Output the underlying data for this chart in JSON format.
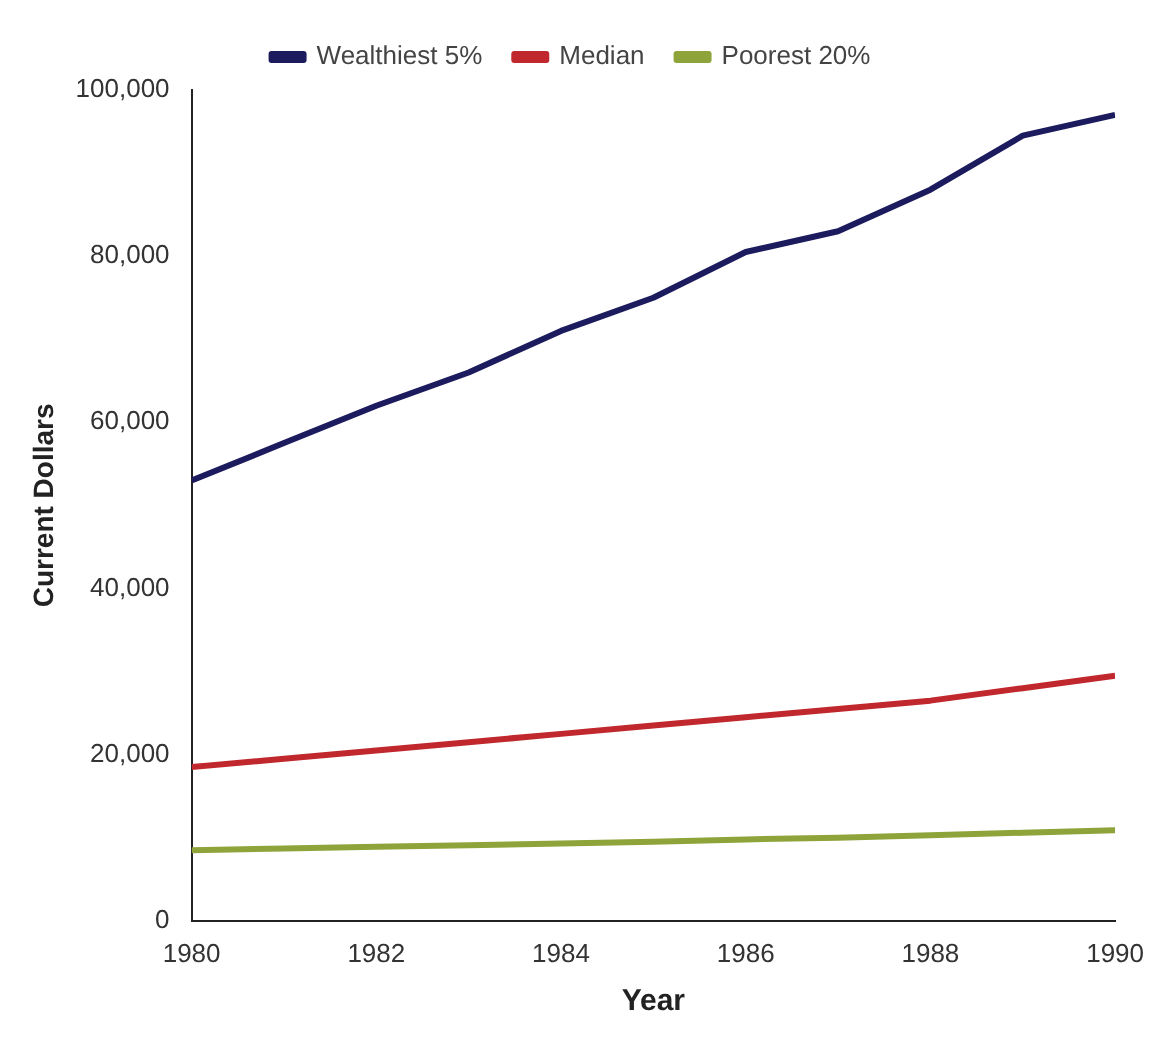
{
  "chart_data": {
    "type": "line",
    "xlabel": "Year",
    "ylabel": "Current Dollars",
    "x": [
      1980,
      1981,
      1982,
      1983,
      1984,
      1985,
      1986,
      1987,
      1988,
      1989,
      1990
    ],
    "xlim": [
      1980,
      1990
    ],
    "xticks": [
      1980,
      1982,
      1984,
      1986,
      1988,
      1990
    ],
    "ylim": [
      0,
      100000
    ],
    "yticks": [
      {
        "value": 0,
        "label": "0"
      },
      {
        "value": 20000,
        "label": "20,000"
      },
      {
        "value": 40000,
        "label": "40,000"
      },
      {
        "value": 60000,
        "label": "60,000"
      },
      {
        "value": 80000,
        "label": "80,000"
      },
      {
        "value": 100000,
        "label": "100,000"
      }
    ],
    "series": [
      {
        "name": "Wealthiest 5%",
        "color": "#1b1b5e",
        "values": [
          53000,
          57500,
          62000,
          66000,
          71000,
          75000,
          80500,
          83000,
          88000,
          94500,
          97000
        ]
      },
      {
        "name": "Median",
        "color": "#c0282d",
        "values": [
          18500,
          19500,
          20500,
          21500,
          22500,
          23500,
          24500,
          25500,
          26500,
          28000,
          29500
        ]
      },
      {
        "name": "Poorest 20%",
        "color": "#8ea33a",
        "values": [
          8500,
          8700,
          8900,
          9100,
          9300,
          9500,
          9800,
          10000,
          10300,
          10600,
          10900
        ]
      }
    ],
    "grid": false,
    "legend": "top",
    "marker": "none",
    "line_style": "solid"
  }
}
